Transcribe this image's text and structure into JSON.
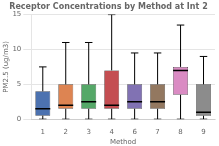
{
  "chart_data": {
    "type": "box",
    "title": "Receptor Concentrations by Method at Int 2",
    "xlabel": "Method",
    "ylabel": "PM2.5 (ug/m3)",
    "categories": [
      "1",
      "2",
      "3",
      "4",
      "6",
      "7",
      "8",
      "9"
    ],
    "boxes": [
      {
        "whislo": 0.0,
        "q1": 0.5,
        "med": 1.5,
        "q3": 4.0,
        "whishi": 7.5
      },
      {
        "whislo": 0.0,
        "q1": 1.5,
        "med": 2.0,
        "q3": 5.0,
        "whishi": 11.0
      },
      {
        "whislo": 0.0,
        "q1": 1.5,
        "med": 2.5,
        "q3": 5.0,
        "whishi": 11.0
      },
      {
        "whislo": 0.0,
        "q1": 1.5,
        "med": 2.0,
        "q3": 7.0,
        "whishi": 15.0
      },
      {
        "whislo": 0.0,
        "q1": 1.5,
        "med": 2.5,
        "q3": 5.0,
        "whishi": 9.5
      },
      {
        "whislo": 0.0,
        "q1": 1.5,
        "med": 2.5,
        "q3": 5.0,
        "whishi": 9.5
      },
      {
        "whislo": 0.0,
        "q1": 3.5,
        "med": 7.0,
        "q3": 7.5,
        "whishi": 13.5
      },
      {
        "whislo": 0.0,
        "q1": 0.5,
        "med": 1.0,
        "q3": 5.0,
        "whishi": 9.0
      }
    ],
    "colors": [
      "#4c72b0",
      "#dd8452",
      "#55a868",
      "#c44e52",
      "#8172b3",
      "#937860",
      "#da8bc3",
      "#8c8c8c"
    ],
    "ylim": [
      0,
      15
    ],
    "yticks": [
      0,
      5,
      10,
      15
    ],
    "grid": true
  }
}
